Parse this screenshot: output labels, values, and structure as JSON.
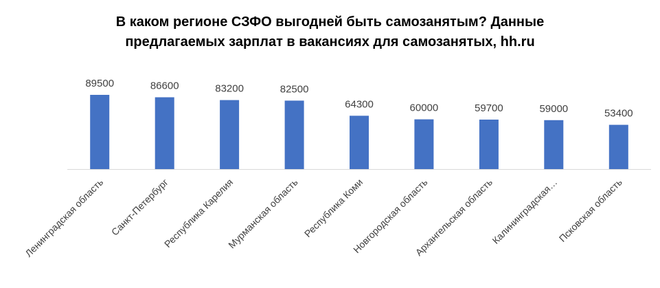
{
  "chart_data": {
    "type": "bar",
    "title_line1": "В каком регионе СЗФО выгодней быть самозанятым? Данные",
    "title_line2": "предлагаемых зарплат в вакансиях для самозанятых, hh.ru",
    "categories": [
      "Ленинградская область",
      "Санкт-Петербург",
      "Республика Карелия",
      "Мурманская область",
      "Республика Коми",
      "Новгородская область",
      "Архангельская область",
      "Калининградская…",
      "Псковская область"
    ],
    "values": [
      89500,
      86600,
      83200,
      82500,
      64300,
      60000,
      59700,
      59000,
      53400
    ],
    "data_labels": [
      "89500",
      "86600",
      "83200",
      "82500",
      "64300",
      "60000",
      "59700",
      "59000",
      "53400"
    ],
    "bar_color": "#4472C4",
    "axis_color": "#d9d9d9",
    "ylim": [
      0,
      100000
    ],
    "grid": false,
    "legend": "none"
  }
}
